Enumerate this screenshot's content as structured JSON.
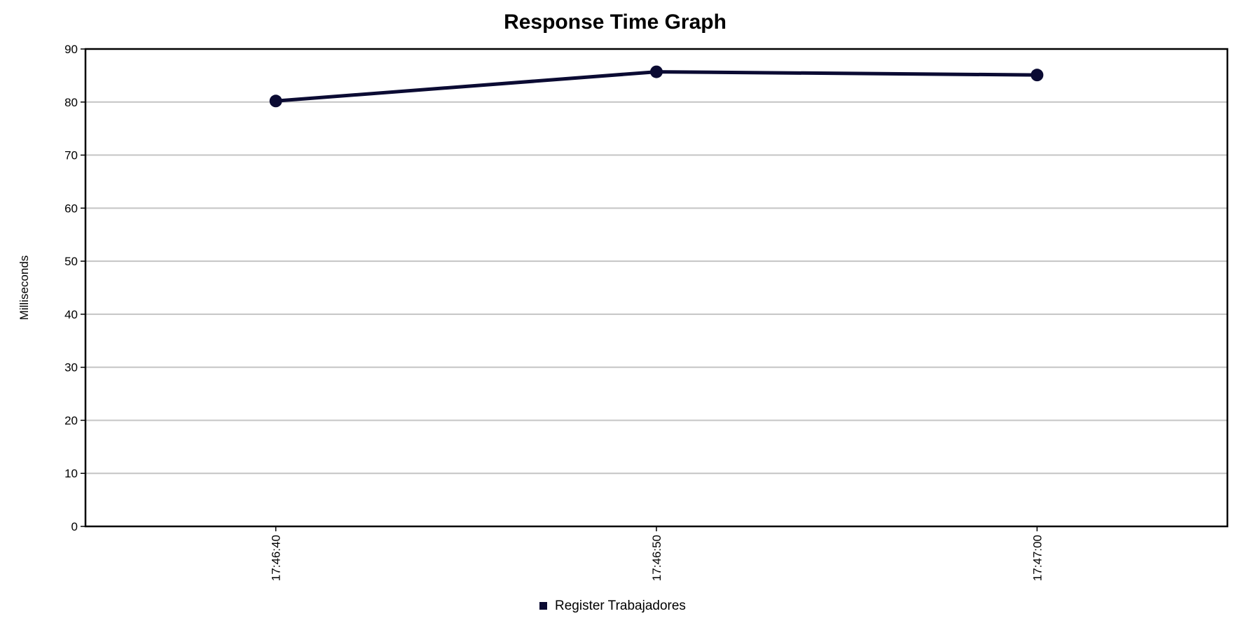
{
  "chart_data": {
    "type": "line",
    "title": "Response Time Graph",
    "xlabel": "",
    "ylabel": "Milliseconds",
    "categories": [
      "17:46:40",
      "17:46:50",
      "17:47:00"
    ],
    "series": [
      {
        "name": "Register Trabajadores",
        "values": [
          80.2,
          85.7,
          85.1
        ],
        "color": "#0b0b33"
      }
    ],
    "ylim": [
      0,
      90
    ],
    "yticks": [
      0,
      10,
      20,
      30,
      40,
      50,
      60,
      70,
      80,
      90
    ],
    "grid": true,
    "legend_position": "bottom-center",
    "gridline_color": "#c4c4c4"
  }
}
